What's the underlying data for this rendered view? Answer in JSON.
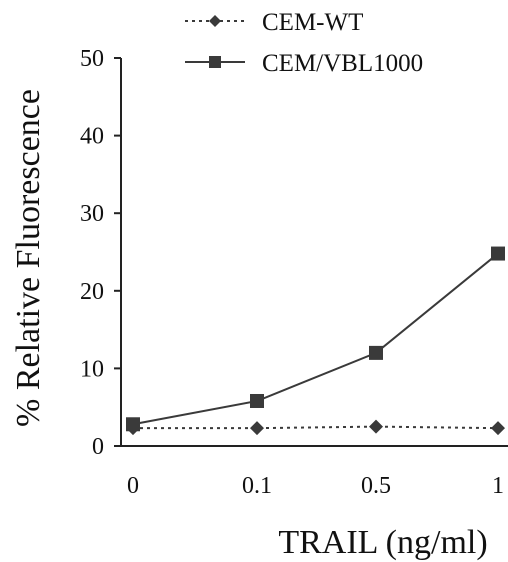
{
  "chart_data": {
    "type": "line",
    "title": "",
    "xlabel": "TRAIL (ng/ml)",
    "ylabel": "% Relative Fluorescence",
    "categories": [
      "0",
      "0.1",
      "0.5",
      "1"
    ],
    "ylim": [
      0,
      50
    ],
    "yticks": [
      "0",
      "10",
      "20",
      "30",
      "40",
      "50"
    ],
    "grid": false,
    "legend_position": "top",
    "series": [
      {
        "name": "CEM-WT",
        "values": [
          2.3,
          2.3,
          2.5,
          2.3
        ],
        "marker": "diamond",
        "line_style": "dotted",
        "color": "#3a3a3a"
      },
      {
        "name": "CEM/VBL1000",
        "values": [
          2.8,
          5.8,
          12.0,
          24.8
        ],
        "marker": "square",
        "line_style": "solid",
        "color": "#3a3a3a"
      }
    ]
  }
}
